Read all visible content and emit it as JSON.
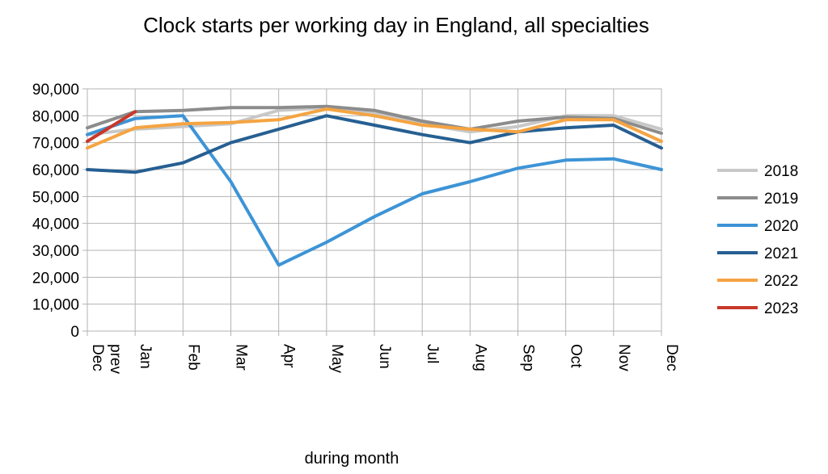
{
  "chart_data": {
    "type": "line",
    "title": "Clock starts per working day in England, all specialties",
    "xlabel": "during  month",
    "ylabel": "",
    "ylim": [
      0,
      90000
    ],
    "yticks": [
      "0",
      "10,000",
      "20,000",
      "30,000",
      "40,000",
      "50,000",
      "60,000",
      "70,000",
      "80,000",
      "90,000"
    ],
    "categories": [
      "Dec prev",
      "Jan",
      "Feb",
      "Mar",
      "Apr",
      "May",
      "Jun",
      "Jul",
      "Aug",
      "Sep",
      "Oct",
      "Nov",
      "Dec"
    ],
    "grid": true,
    "legend_position": "right",
    "series": [
      {
        "name": "2018",
        "color": "#c8c8c8",
        "values": [
          73000,
          75000,
          76000,
          77000,
          82000,
          83000,
          81000,
          77000,
          74000,
          76000,
          80000,
          80000,
          75000
        ]
      },
      {
        "name": "2019",
        "color": "#8c8c8c",
        "values": [
          75500,
          81500,
          82000,
          83000,
          83000,
          83500,
          82000,
          78000,
          75000,
          78000,
          79500,
          79000,
          73500
        ]
      },
      {
        "name": "2020",
        "color": "#3d94d6",
        "values": [
          73000,
          79000,
          80000,
          55500,
          24500,
          33000,
          42500,
          51000,
          55500,
          60500,
          63500,
          64000,
          60000
        ]
      },
      {
        "name": "2021",
        "color": "#265f92",
        "values": [
          60000,
          59000,
          62500,
          70000,
          75000,
          80000,
          76500,
          73000,
          70000,
          74000,
          75500,
          76500,
          68000
        ]
      },
      {
        "name": "2022",
        "color": "#f5a442",
        "values": [
          68000,
          75500,
          77000,
          77500,
          78500,
          82500,
          80000,
          76500,
          75000,
          74000,
          78500,
          78500,
          70500
        ]
      },
      {
        "name": "2023",
        "color": "#c8382a",
        "values": [
          70500,
          81500,
          null,
          null,
          null,
          null,
          null,
          null,
          null,
          null,
          null,
          null,
          null
        ]
      }
    ]
  }
}
